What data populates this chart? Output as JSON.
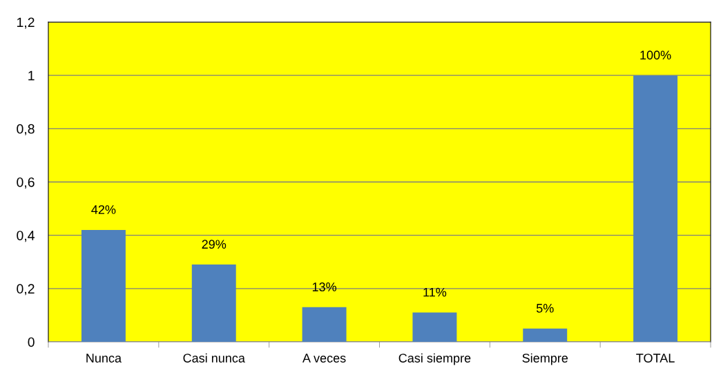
{
  "chart_data": {
    "type": "bar",
    "categories": [
      "Nunca",
      "Casi nunca",
      "A veces",
      "Casi siempre",
      "Siempre",
      "TOTAL"
    ],
    "values": [
      0.42,
      0.29,
      0.13,
      0.11,
      0.05,
      1.0
    ],
    "value_labels": [
      "42%",
      "29%",
      "13%",
      "11%",
      "5%",
      "100%"
    ],
    "color": "#4f81bd",
    "ylim": [
      0,
      1.2
    ],
    "yticks": [
      {
        "value": 0,
        "label": "0"
      },
      {
        "value": 0.2,
        "label": "0,2"
      },
      {
        "value": 0.4,
        "label": "0,4"
      },
      {
        "value": 0.6,
        "label": "0,6"
      },
      {
        "value": 0.8,
        "label": "0,8"
      },
      {
        "value": 1,
        "label": "1"
      },
      {
        "value": 1.2,
        "label": "1,2"
      }
    ],
    "grid": "y",
    "legend": false
  }
}
